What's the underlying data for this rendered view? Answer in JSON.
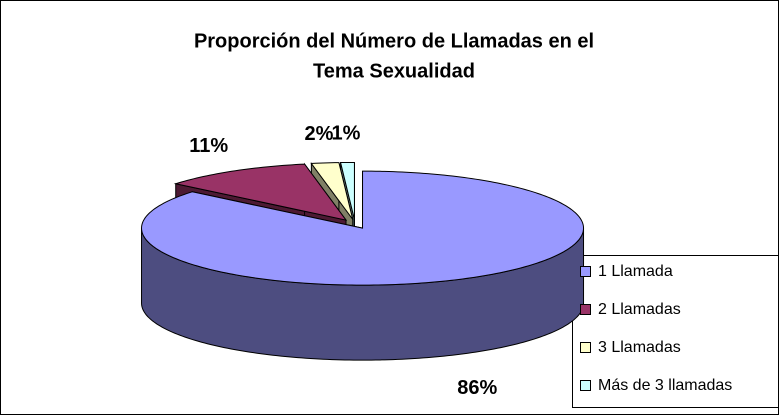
{
  "chart_data": {
    "type": "pie3d",
    "title": [
      "Proporción del Número de Llamadas en el",
      "Tema Sexualidad"
    ],
    "categories": [
      "1 Llamada",
      "2 Llamadas",
      "3 Llamadas",
      "Más de 3 llamadas"
    ],
    "values": [
      86,
      11,
      2,
      1
    ],
    "value_labels": [
      "86%",
      "11%",
      "2%",
      "1%"
    ],
    "colors": [
      "#9999ff",
      "#993366",
      "#ffffcc",
      "#ccffff"
    ],
    "legend": "right"
  }
}
